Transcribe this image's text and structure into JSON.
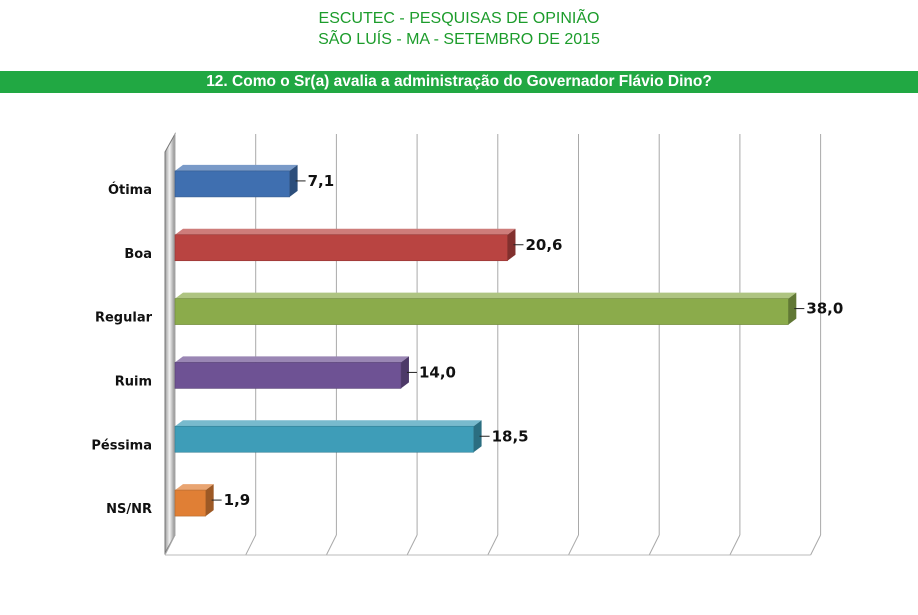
{
  "header": {
    "line1": "ESCUTEC - PESQUISAS DE OPINIÃO",
    "line2": "SÃO LUÍS - MA - SETEMBRO DE 2015"
  },
  "question": "12. Como o Sr(a) avalia a administração do Governador Flávio Dino?",
  "chart_data": {
    "type": "bar",
    "orientation": "horizontal",
    "categories": [
      "Ótima",
      "Boa",
      "Regular",
      "Ruim",
      "Péssima",
      "NS/NR"
    ],
    "values": [
      7.1,
      20.6,
      38.0,
      14.0,
      18.5,
      1.9
    ],
    "value_labels": [
      "7,1",
      "20,6",
      "38,0",
      "14,0",
      "18,5",
      "1,9"
    ],
    "colors": [
      "#3f6fb0",
      "#b94441",
      "#8bab4b",
      "#6e5294",
      "#3e9db8",
      "#e07f35"
    ],
    "title": "",
    "xlabel": "",
    "ylabel": "",
    "xlim": [
      0,
      40
    ],
    "grid": true,
    "legend": "none"
  }
}
